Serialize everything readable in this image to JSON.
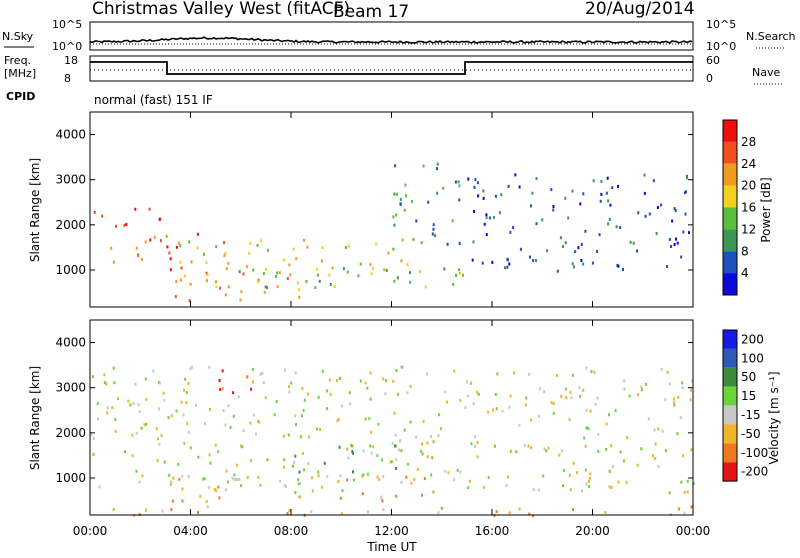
{
  "header": {
    "radar": "Christmas Valley West (fitACF)",
    "beam": "Beam 17",
    "date": "20/Aug/2014"
  },
  "top_panels": {
    "nsky_label": "N.Sky",
    "nsky_ticks_left": [
      "10^5",
      "10^0"
    ],
    "nsky_ticks_right": [
      "10^5",
      "10^0"
    ],
    "nsearch_label": "N.Search",
    "freq_label_1": "Freq.",
    "freq_label_2": "[MHz]",
    "freq_ticks_left": [
      "18",
      "8"
    ],
    "nave_ticks_right": [
      "60",
      "0"
    ],
    "nave_label": "Nave",
    "cpid_label": "CPID",
    "cpid_text": "normal (fast) 151 IF"
  },
  "power_panel": {
    "ylabel": "Slant Range [km]",
    "colorbar_label": "Power [dB]",
    "colorbar_ticks": [
      "4",
      "8",
      "12",
      "16",
      "20",
      "24",
      "28"
    ],
    "colors": [
      "#0a0adc",
      "#1e50be",
      "#3c9655",
      "#5abe3c",
      "#f0d020",
      "#f09a20",
      "#f05020",
      "#e81010"
    ]
  },
  "velocity_panel": {
    "ylabel": "Slant Range [km]",
    "colorbar_label": "Velocity [m s⁻¹]",
    "colorbar_ticks": [
      "200",
      "100",
      "50",
      "15",
      "-15",
      "-50",
      "-100",
      "-200"
    ],
    "colors": [
      "#1a1ae6",
      "#2d5ab4",
      "#3c8c3c",
      "#6ed23c",
      "#c8c8c8",
      "#f0b428",
      "#f07820",
      "#e61414"
    ]
  },
  "axes": {
    "y_ticks": [
      "1000",
      "2000",
      "3000",
      "4000"
    ],
    "x_ticks": [
      "00:00",
      "04:00",
      "08:00",
      "12:00",
      "16:00",
      "20:00",
      "00:00"
    ],
    "xlabel": "Time UT"
  },
  "chart_data": {
    "type": "heatmap",
    "x_range_hours": [
      0,
      24
    ],
    "y_range_km": [
      180,
      4500
    ],
    "power_features": [
      {
        "t0": 0.0,
        "t1": 2.8,
        "r0": 1200,
        "r1": 2400,
        "level": 6
      },
      {
        "t0": 2.9,
        "t1": 5.5,
        "r0": 700,
        "r1": 1900,
        "level": 6
      },
      {
        "t0": 3.0,
        "t1": 8.5,
        "r0": 350,
        "r1": 1000,
        "level": 5
      },
      {
        "t0": 3.5,
        "t1": 13.5,
        "r0": 900,
        "r1": 1700,
        "level": 4
      },
      {
        "t0": 4.5,
        "t1": 15.0,
        "r0": 600,
        "r1": 1100,
        "level": 3
      },
      {
        "t0": 12.0,
        "t1": 15.0,
        "r0": 1600,
        "r1": 3500,
        "level": 2
      },
      {
        "t0": 15.0,
        "t1": 24.0,
        "r0": 1000,
        "r1": 3200,
        "level": 1
      }
    ],
    "velocity_features": [
      {
        "t0": 5.0,
        "t1": 6.5,
        "r0": 2800,
        "r1": 3500,
        "level": 7
      },
      {
        "t0": 8.0,
        "t1": 12.5,
        "r0": 1100,
        "r1": 1900,
        "level": 3
      },
      {
        "t0": 3.0,
        "t1": 14.0,
        "r0": 500,
        "r1": 1100,
        "level": 5
      },
      {
        "t0": 0.0,
        "t1": 24.0,
        "r0": 180,
        "r1": 400,
        "level": 5
      },
      {
        "t0": 0.0,
        "t1": 24.0,
        "r0": 700,
        "r1": 3500,
        "level": 4
      }
    ]
  }
}
